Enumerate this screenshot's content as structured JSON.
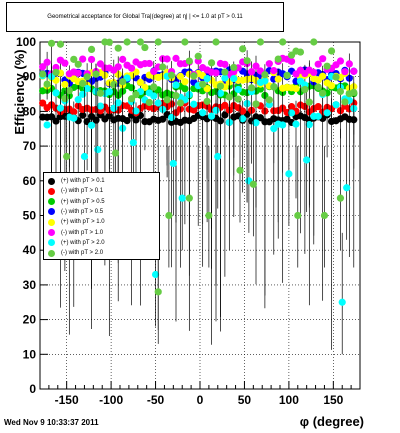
{
  "chart_data": {
    "type": "scatter",
    "title": "Geometrical acceptance for Global Tra|(degree) at η| | <= 1.0 at pT > 0.11",
    "xlabel": "φ (degree)",
    "ylabel": "Efficiency (%)",
    "xlim": [
      -180,
      180
    ],
    "ylim": [
      0,
      100
    ],
    "x_ticks": [
      -150,
      -100,
      -50,
      0,
      50,
      100,
      150
    ],
    "y_ticks": [
      0,
      10,
      20,
      30,
      40,
      50,
      60,
      70,
      80,
      90,
      100
    ],
    "grid": true,
    "legend_position": "left",
    "series": [
      {
        "name": "(+) with pT > 0.1",
        "color": "#000000",
        "base": 78,
        "spread": 1.2
      },
      {
        "name": "(-) with pT > 0.1",
        "color": "#ff0000",
        "base": 81,
        "spread": 1.5
      },
      {
        "name": "(+) with pT > 0.5",
        "color": "#00cc00",
        "base": 86,
        "spread": 1.5
      },
      {
        "name": "(-) with pT > 0.5",
        "color": "#0000ff",
        "base": 90,
        "spread": 2
      },
      {
        "name": "(+) with pT > 1.0",
        "color": "#ffff00",
        "base": 89,
        "spread": 2.5
      },
      {
        "name": "(-) with pT > 1.0",
        "color": "#ff00ff",
        "base": 93,
        "spread": 2.5
      },
      {
        "name": "(+) with pT > 2.0",
        "color": "#00ffff",
        "base": 83,
        "spread": 8
      },
      {
        "name": "(-) with pT > 2.0",
        "color": "#66cc44",
        "base": 92,
        "spread": 10
      }
    ],
    "outliers": [
      {
        "series": 6,
        "x": -130,
        "y": 67
      },
      {
        "series": 6,
        "x": -115,
        "y": 69
      },
      {
        "series": 6,
        "x": -75,
        "y": 71
      },
      {
        "series": 6,
        "x": -50,
        "y": 33
      },
      {
        "series": 6,
        "x": -30,
        "y": 65
      },
      {
        "series": 6,
        "x": -20,
        "y": 55
      },
      {
        "series": 6,
        "x": 20,
        "y": 67
      },
      {
        "series": 6,
        "x": 55,
        "y": 60
      },
      {
        "series": 6,
        "x": 100,
        "y": 62
      },
      {
        "series": 6,
        "x": 120,
        "y": 66
      },
      {
        "series": 6,
        "x": 160,
        "y": 25
      },
      {
        "series": 6,
        "x": 165,
        "y": 58
      },
      {
        "series": 7,
        "x": -150,
        "y": 67
      },
      {
        "series": 7,
        "x": -95,
        "y": 68
      },
      {
        "series": 7,
        "x": -47,
        "y": 28
      },
      {
        "series": 7,
        "x": -35,
        "y": 50
      },
      {
        "series": 7,
        "x": -12,
        "y": 55
      },
      {
        "series": 7,
        "x": 10,
        "y": 50
      },
      {
        "series": 7,
        "x": 45,
        "y": 63
      },
      {
        "series": 7,
        "x": 60,
        "y": 59
      },
      {
        "series": 7,
        "x": 110,
        "y": 50
      },
      {
        "series": 7,
        "x": 140,
        "y": 50
      },
      {
        "series": 7,
        "x": 158,
        "y": 55
      }
    ]
  },
  "footer": "Wed Nov  9 10:33:37 2011"
}
